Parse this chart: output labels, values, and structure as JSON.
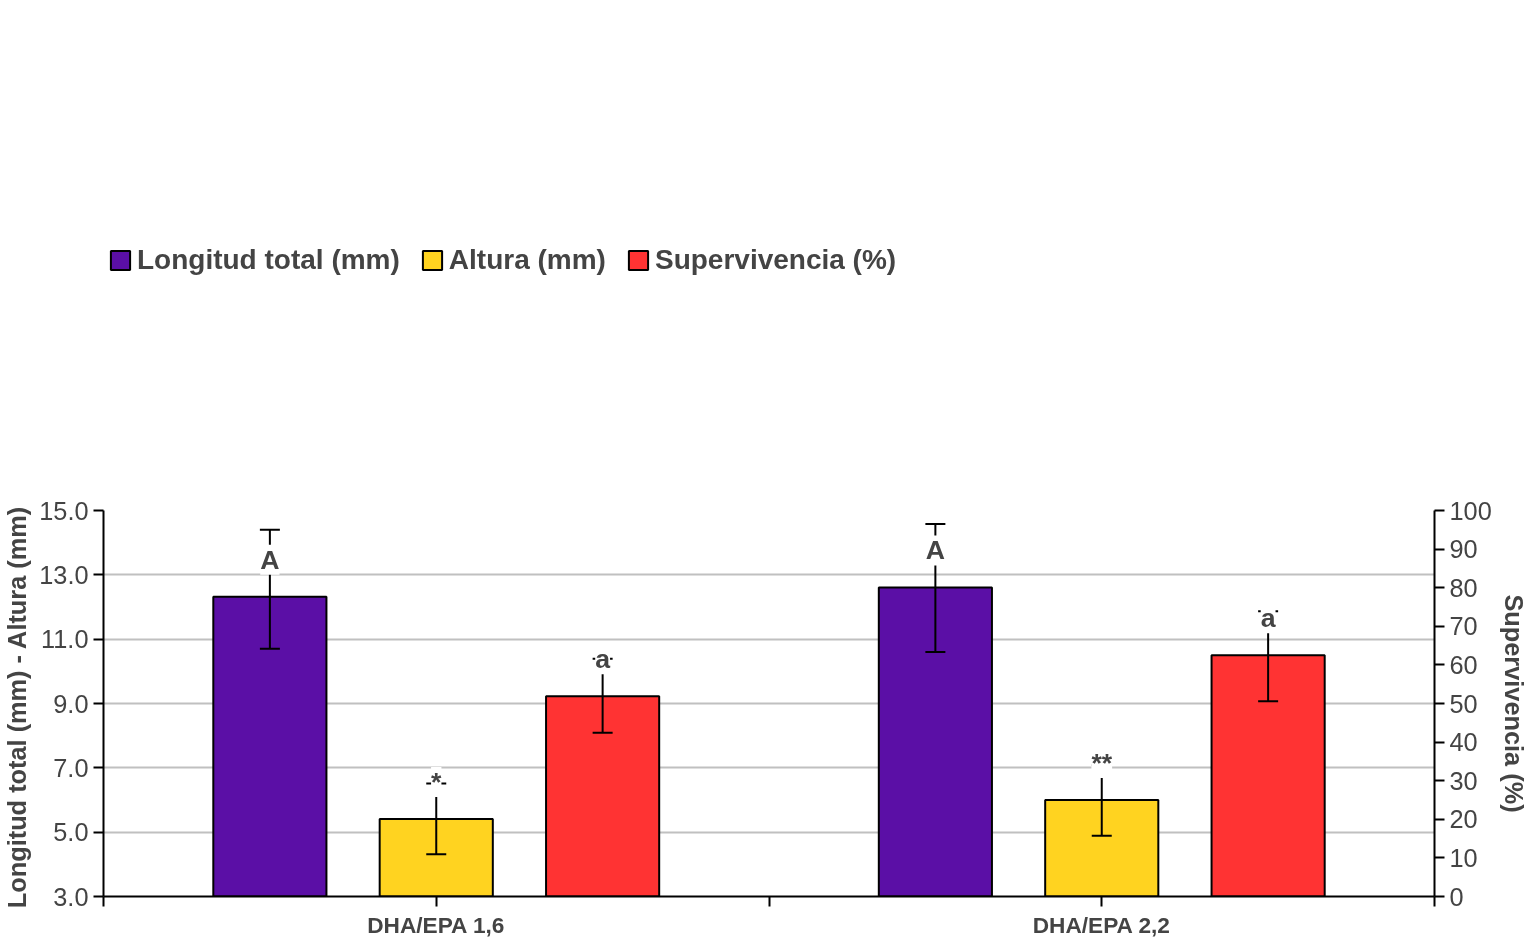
{
  "chart_data": {
    "type": "bar",
    "categories": [
      "DHA/EPA 1,6",
      "DHA/EPA 2,2"
    ],
    "series": [
      {
        "name": "Longitud total (mm)",
        "color": "#5b0fa6",
        "values": [
          12.32,
          12.61
        ],
        "errors": [
          [
            10.7,
            14.4
          ],
          [
            10.6,
            14.58
          ]
        ]
      },
      {
        "name": "Altura (mm)",
        "color": "#ffd320",
        "values": [
          5.41,
          6.0
        ],
        "errors": [
          [
            4.31,
            6.51
          ],
          [
            4.89,
            7.08
          ]
        ]
      },
      {
        "name": "Supervivencia (%)",
        "color": "#ff3333",
        "axis": "y2",
        "values": [
          51.9,
          62.5
        ],
        "errors": [
          [
            42.4,
            61.6
          ],
          [
            50.6,
            73.9
          ]
        ]
      }
    ],
    "ylabel": "Longitud total  (mm) - Altura (mm)",
    "y2label": "Supervivencia (%)",
    "ylim": [
      3.0,
      15.0
    ],
    "yticks": [
      {
        "value": 3,
        "label": "3.0"
      },
      {
        "value": 5,
        "label": "5.0"
      },
      {
        "value": 7,
        "label": "7.0"
      },
      {
        "value": 9,
        "label": "9.0"
      },
      {
        "value": 11,
        "label": "11.0"
      },
      {
        "value": 13,
        "label": "13.0"
      },
      {
        "value": 15,
        "label": "15.0"
      }
    ],
    "y2lim": [
      0,
      100
    ],
    "y2ticks": [
      0,
      10,
      20,
      30,
      40,
      50,
      60,
      70,
      80,
      90,
      100
    ],
    "annotations": [
      "A",
      "*",
      "a",
      "A",
      "**",
      "a"
    ],
    "grid": "y",
    "legend": "top"
  }
}
